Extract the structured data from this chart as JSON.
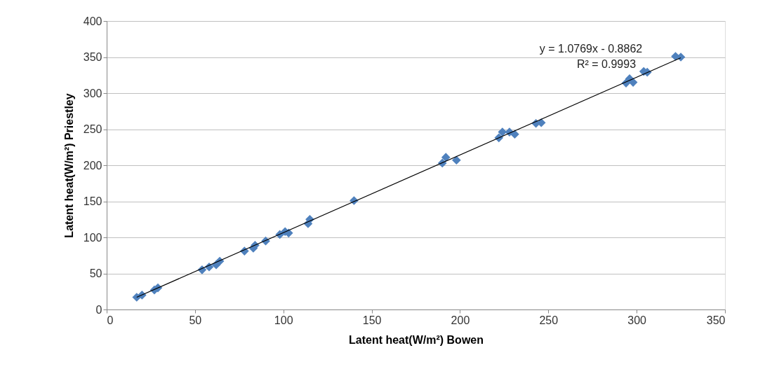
{
  "chart_data": {
    "type": "scatter",
    "xlabel": "Latent heat(W/m²)   Bowen",
    "ylabel": "Latent heat(W/m²)    Priestley",
    "xlim": [
      0,
      350
    ],
    "xticks": [
      0,
      50,
      100,
      150,
      200,
      250,
      300,
      350
    ],
    "ylim": [
      0,
      400
    ],
    "yticks": [
      0,
      50,
      100,
      150,
      200,
      250,
      300,
      350,
      400
    ],
    "grid": "y",
    "marker": "diamond",
    "annotations": [
      "y = 1.0769x - 0.8862",
      "R² = 0.9993"
    ],
    "series": [
      {
        "color": "#4f81bd",
        "x": [
          17,
          20,
          27,
          29,
          54,
          58,
          62,
          64,
          78,
          83,
          84,
          90,
          98,
          101,
          103,
          114,
          115,
          140,
          190,
          192,
          198,
          222,
          224,
          228,
          231,
          243,
          246,
          294,
          296,
          298,
          304,
          306,
          322,
          325
        ],
        "values": [
          17,
          20,
          27,
          30,
          55,
          59,
          62,
          67,
          81,
          85,
          89,
          95,
          104,
          108,
          106,
          119,
          125,
          151,
          203,
          211,
          207,
          238,
          246,
          246,
          243,
          258,
          259,
          314,
          320,
          315,
          330,
          329,
          351,
          350
        ]
      },
      {
        "type": "line",
        "marker": "none",
        "color": "#000000",
        "x": [
          17,
          325
        ],
        "values": [
          17,
          349
        ]
      }
    ]
  }
}
